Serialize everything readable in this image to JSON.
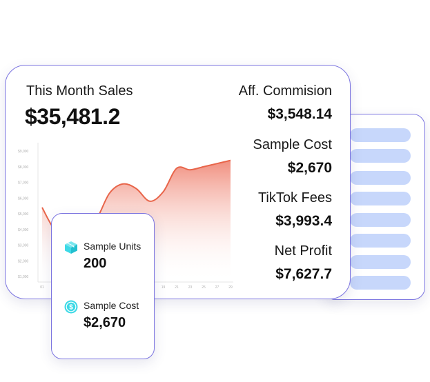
{
  "sales": {
    "title": "This Month Sales",
    "amount": "$35,481.2"
  },
  "metrics": [
    {
      "label": "Aff. Commision",
      "value": "$3,548.14"
    },
    {
      "label": "Sample Cost",
      "value": "$2,670"
    },
    {
      "label": "TikTok Fees",
      "value": "$3,993.4"
    },
    {
      "label": "Net Profit",
      "value": "$7,627.7"
    }
  ],
  "samples": {
    "units_label": "Sample Units",
    "units_value": "200",
    "cost_label": "Sample Cost",
    "cost_value": "$2,670"
  },
  "colors": {
    "border": "#7b74e0",
    "line": "#e8654a",
    "list_bar": "#c7d7fb",
    "icon": "#3dd9e6"
  },
  "icons": [
    "box-icon",
    "dollar-coin-icon"
  ],
  "chart_data": {
    "type": "area",
    "y_ticks": [
      "$9,000",
      "$8,000",
      "$7,000",
      "$6,000",
      "$5,000",
      "$4,000",
      "$3,000",
      "$2,000",
      "$1,000"
    ],
    "x_ticks": [
      "01",
      "19",
      "21",
      "23",
      "25",
      "27",
      "29"
    ],
    "ylim": [
      1000,
      9000
    ],
    "x": [
      1,
      3,
      5,
      7,
      9,
      11,
      13,
      15,
      17,
      19,
      21,
      23,
      25,
      27,
      29
    ],
    "values": [
      5400,
      3900,
      3600,
      4000,
      4600,
      6300,
      6900,
      6600,
      5800,
      6400,
      7900,
      7800,
      8000,
      8200,
      8400
    ]
  }
}
